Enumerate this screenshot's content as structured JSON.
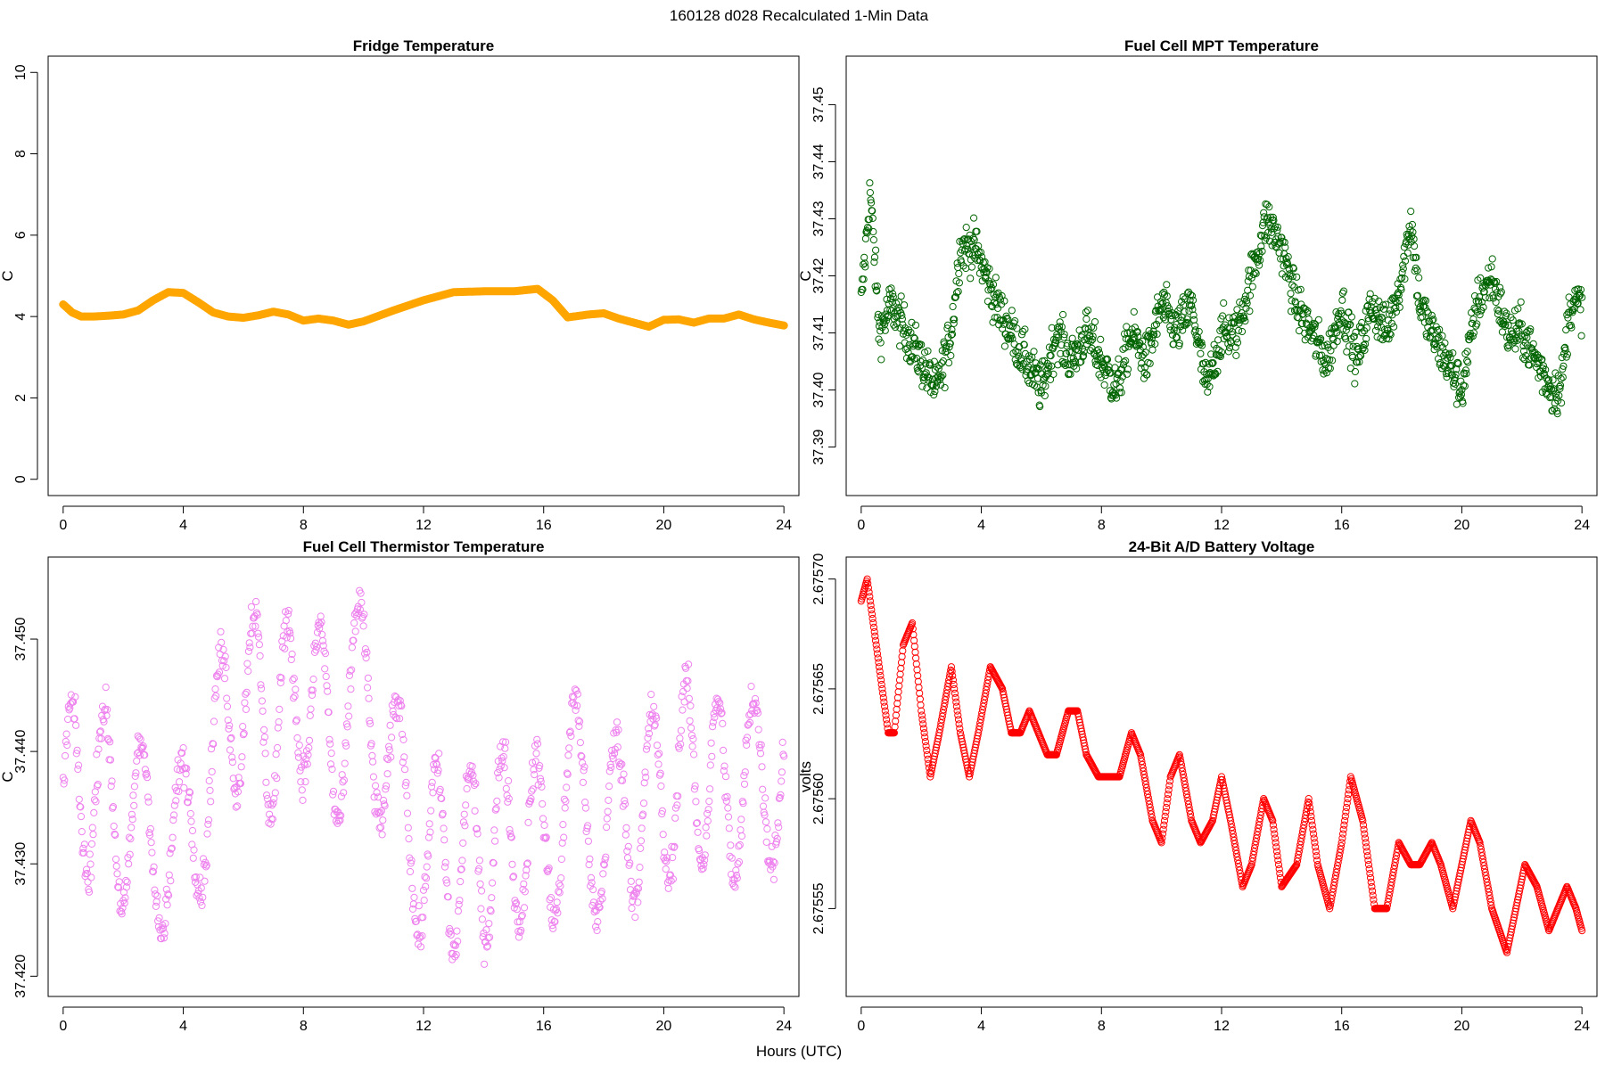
{
  "figure": {
    "title": "160128   d028   Recalculated 1-Min Data",
    "xlabel": "Hours (UTC)"
  },
  "chart_data": [
    {
      "type": "line",
      "title": "Fridge Temperature",
      "xlabel": "Hours (UTC)",
      "ylabel": "C",
      "xlim": [
        -0.5,
        24.5
      ],
      "ylim": [
        -0.4,
        10.4
      ],
      "xticks": [
        0,
        4,
        8,
        12,
        16,
        20,
        24
      ],
      "yticks": [
        0,
        2,
        4,
        6,
        8,
        10
      ],
      "ytick_labels": [
        "0",
        "2",
        "4",
        "6",
        "8",
        "10"
      ],
      "color": "#FFA500",
      "series": [
        {
          "name": "Fridge Temperature",
          "x": [
            0,
            0.3,
            0.6,
            1.0,
            1.5,
            2.0,
            2.5,
            3.0,
            3.5,
            4.0,
            4.5,
            5.0,
            5.5,
            6.0,
            6.5,
            7.0,
            7.5,
            8.0,
            8.5,
            9.0,
            9.5,
            10.0,
            11.0,
            12.0,
            13.0,
            14.0,
            15.0,
            15.8,
            16.3,
            16.8,
            17.5,
            18.0,
            18.5,
            19.0,
            19.5,
            20.0,
            20.5,
            21.0,
            21.5,
            22.0,
            22.5,
            23.0,
            23.5,
            24.0
          ],
          "y": [
            4.3,
            4.1,
            4.0,
            4.0,
            4.02,
            4.05,
            4.15,
            4.4,
            4.6,
            4.58,
            4.35,
            4.1,
            4.0,
            3.97,
            4.03,
            4.12,
            4.05,
            3.9,
            3.95,
            3.9,
            3.8,
            3.88,
            4.15,
            4.4,
            4.6,
            4.62,
            4.62,
            4.68,
            4.4,
            3.98,
            4.05,
            4.08,
            3.95,
            3.85,
            3.75,
            3.92,
            3.93,
            3.85,
            3.95,
            3.95,
            4.05,
            3.93,
            3.85,
            3.78
          ]
        }
      ]
    },
    {
      "type": "scatter",
      "title": "Fuel Cell MPT Temperature",
      "xlabel": "Hours (UTC)",
      "ylabel": "C",
      "xlim": [
        -0.5,
        24.5
      ],
      "ylim": [
        37.3815,
        37.4585
      ],
      "xticks": [
        0,
        4,
        8,
        12,
        16,
        20,
        24
      ],
      "yticks": [
        37.39,
        37.4,
        37.41,
        37.42,
        37.43,
        37.44,
        37.45
      ],
      "ytick_labels": [
        "37.39",
        "37.40",
        "37.41",
        "37.42",
        "37.43",
        "37.44",
        "37.45"
      ],
      "color": "#006400",
      "points_per_hour": 60,
      "noise_amplitude": 0.0045,
      "series": [
        {
          "name": "Fuel Cell MPT Temperature",
          "x": [
            0,
            0.3,
            0.6,
            1.0,
            1.5,
            2.0,
            2.5,
            3.0,
            3.3,
            3.8,
            4.5,
            5.0,
            5.5,
            6.0,
            6.5,
            7.0,
            7.5,
            8.0,
            8.5,
            9.0,
            9.5,
            10.0,
            10.5,
            11.0,
            11.5,
            12.0,
            12.5,
            13.0,
            13.5,
            14.0,
            14.5,
            15.0,
            15.5,
            16.0,
            16.5,
            17.0,
            17.5,
            18.0,
            18.3,
            18.6,
            19.0,
            19.5,
            20.0,
            20.5,
            21.0,
            21.5,
            22.0,
            22.5,
            23.0,
            23.3,
            23.6,
            24.0
          ],
          "y": [
            37.415,
            37.435,
            37.41,
            37.415,
            37.41,
            37.405,
            37.4,
            37.41,
            37.425,
            37.425,
            37.415,
            37.41,
            37.405,
            37.4,
            37.41,
            37.405,
            37.41,
            37.405,
            37.4,
            37.41,
            37.405,
            37.415,
            37.41,
            37.415,
            37.4,
            37.41,
            37.41,
            37.42,
            37.43,
            37.425,
            37.415,
            37.41,
            37.405,
            37.415,
            37.405,
            37.415,
            37.41,
            37.42,
            37.43,
            37.415,
            37.41,
            37.405,
            37.4,
            37.415,
            37.42,
            37.41,
            37.41,
            37.405,
            37.4,
            37.4,
            37.415,
            37.415
          ]
        }
      ]
    },
    {
      "type": "scatter",
      "title": "Fuel Cell Thermistor Temperature",
      "xlabel": "Hours (UTC)",
      "ylabel": "C",
      "xlim": [
        -0.5,
        24.5
      ],
      "ylim": [
        37.4182,
        37.4573
      ],
      "xticks": [
        0,
        4,
        8,
        12,
        16,
        20,
        24
      ],
      "yticks": [
        37.42,
        37.43,
        37.44,
        37.45
      ],
      "ytick_labels": [
        "37.420",
        "37.430",
        "37.440",
        "37.450"
      ],
      "color": "#EE82EE",
      "points_per_hour": 45,
      "oscillation_period_hours": 1.2,
      "oscillation_amplitude": 0.008,
      "noise_amplitude": 0.002,
      "series": [
        {
          "name": "Fuel Cell Thermistor Temperature",
          "x": [
            0,
            1,
            2,
            3,
            4,
            5,
            6,
            7,
            8,
            9,
            10,
            11,
            11.5,
            12,
            13,
            14,
            15,
            16,
            17,
            18,
            19,
            20,
            21,
            22,
            23,
            24
          ],
          "y": [
            37.436,
            37.437,
            37.434,
            37.432,
            37.431,
            37.439,
            37.446,
            37.442,
            37.446,
            37.441,
            37.446,
            37.438,
            37.433,
            37.431,
            37.43,
            37.431,
            37.433,
            37.431,
            37.437,
            37.432,
            37.435,
            37.436,
            37.439,
            37.436,
            37.437,
            37.439
          ]
        }
      ]
    },
    {
      "type": "scatter",
      "title": "24-Bit A/D Battery Voltage",
      "xlabel": "Hours (UTC)",
      "ylabel": "volts",
      "xlim": [
        -0.5,
        24.5
      ],
      "ylim": [
        2.67551,
        2.67571
      ],
      "xticks": [
        0,
        4,
        8,
        12,
        16,
        20,
        24
      ],
      "yticks": [
        2.67555,
        2.6756,
        2.67565,
        2.6757
      ],
      "ytick_labels": [
        "2.67555",
        "2.67560",
        "2.67565",
        "2.67570"
      ],
      "color": "#FF0000",
      "points_per_hour": 50,
      "series": [
        {
          "name": "24-Bit A/D Battery Voltage",
          "x": [
            0.0,
            0.2,
            0.5,
            0.9,
            1.1,
            1.4,
            1.7,
            2.0,
            2.3,
            2.6,
            3.0,
            3.3,
            3.6,
            3.9,
            4.3,
            4.7,
            5.0,
            5.3,
            5.6,
            5.9,
            6.2,
            6.5,
            6.9,
            7.2,
            7.5,
            7.9,
            8.3,
            8.6,
            9.0,
            9.3,
            9.7,
            10.0,
            10.3,
            10.6,
            11.0,
            11.3,
            11.7,
            12.0,
            12.3,
            12.7,
            13.0,
            13.4,
            13.7,
            14.0,
            14.5,
            14.9,
            15.2,
            15.6,
            16.0,
            16.3,
            16.7,
            17.1,
            17.5,
            17.9,
            18.3,
            18.6,
            19.0,
            19.3,
            19.7,
            20.0,
            20.3,
            20.6,
            21.0,
            21.5,
            21.8,
            22.1,
            22.5,
            22.9,
            23.2,
            23.5,
            23.8,
            24.0
          ],
          "y": [
            2.67569,
            2.6757,
            2.67567,
            2.67563,
            2.67563,
            2.67567,
            2.67568,
            2.67564,
            2.67561,
            2.67563,
            2.67566,
            2.67563,
            2.67561,
            2.67563,
            2.67566,
            2.67565,
            2.67563,
            2.67563,
            2.67564,
            2.67563,
            2.67562,
            2.67562,
            2.67564,
            2.67564,
            2.67562,
            2.67561,
            2.67561,
            2.67561,
            2.67563,
            2.67562,
            2.67559,
            2.67558,
            2.67561,
            2.67562,
            2.67559,
            2.67558,
            2.67559,
            2.67561,
            2.67559,
            2.67556,
            2.67557,
            2.6756,
            2.67559,
            2.67556,
            2.67557,
            2.6756,
            2.67557,
            2.67555,
            2.67558,
            2.67561,
            2.67559,
            2.67555,
            2.67555,
            2.67558,
            2.67557,
            2.67557,
            2.67558,
            2.67557,
            2.67555,
            2.67557,
            2.67559,
            2.67558,
            2.67555,
            2.67553,
            2.67555,
            2.67557,
            2.67556,
            2.67554,
            2.67555,
            2.67556,
            2.67555,
            2.67554
          ]
        }
      ]
    }
  ]
}
